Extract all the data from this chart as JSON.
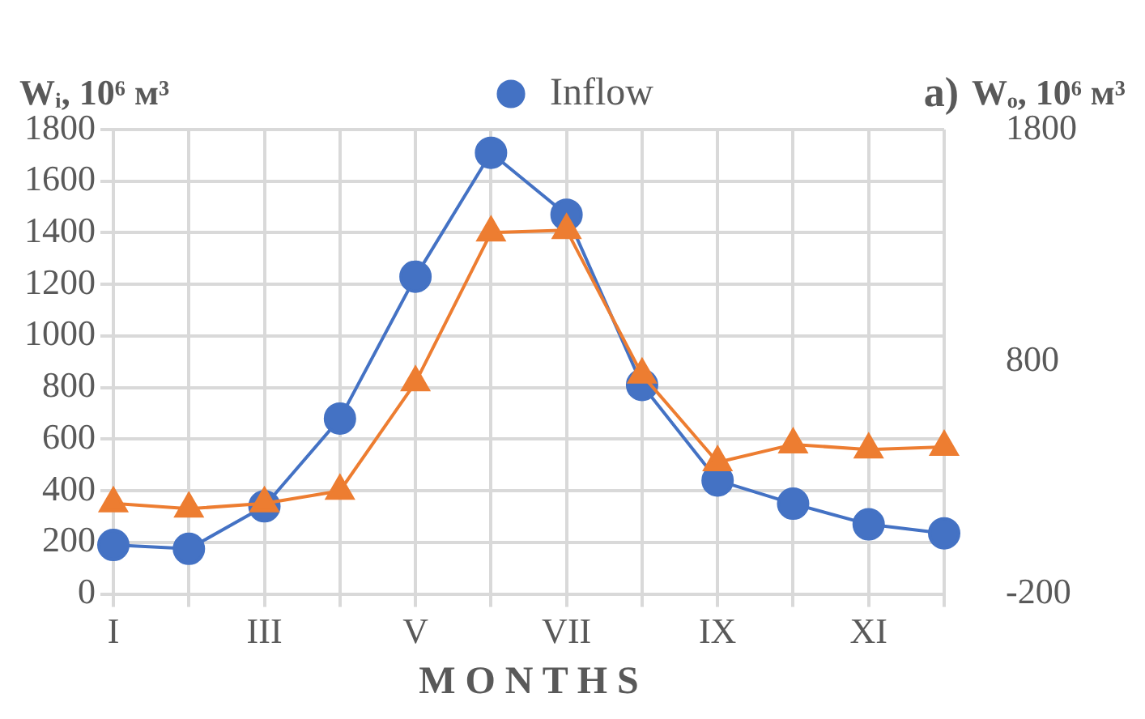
{
  "chart_data": {
    "type": "line",
    "xlabel": "M O N T H S",
    "ylabel": "Wᵢ, 10⁶ м³",
    "y2label": "Wₒ, 10⁶ м³",
    "annotations": [
      "a)"
    ],
    "categories": [
      "I",
      null,
      "III",
      null,
      "V",
      null,
      "VII",
      null,
      "IX",
      null,
      "XI",
      null
    ],
    "series": [
      {
        "name": "Inflow",
        "color": "#4472c4",
        "marker": "circle",
        "values": [
          190,
          175,
          340,
          680,
          1230,
          1710,
          1470,
          810,
          440,
          350,
          270,
          235
        ]
      },
      {
        "color": "#ed7d31",
        "marker": "triangle",
        "axis": "y2",
        "values": [
          190,
          167,
          190,
          244,
          711,
          1356,
          1367,
          744,
          367,
          444,
          422,
          433
        ]
      }
    ],
    "ylim": [
      0,
      1800
    ],
    "yticks": [
      0,
      200,
      400,
      600,
      800,
      1000,
      1200,
      1400,
      1600,
      1800
    ],
    "y2lim": [
      -200,
      1800
    ],
    "y2ticks": [
      -200,
      800,
      1800
    ],
    "grid": true,
    "legend": "top"
  }
}
